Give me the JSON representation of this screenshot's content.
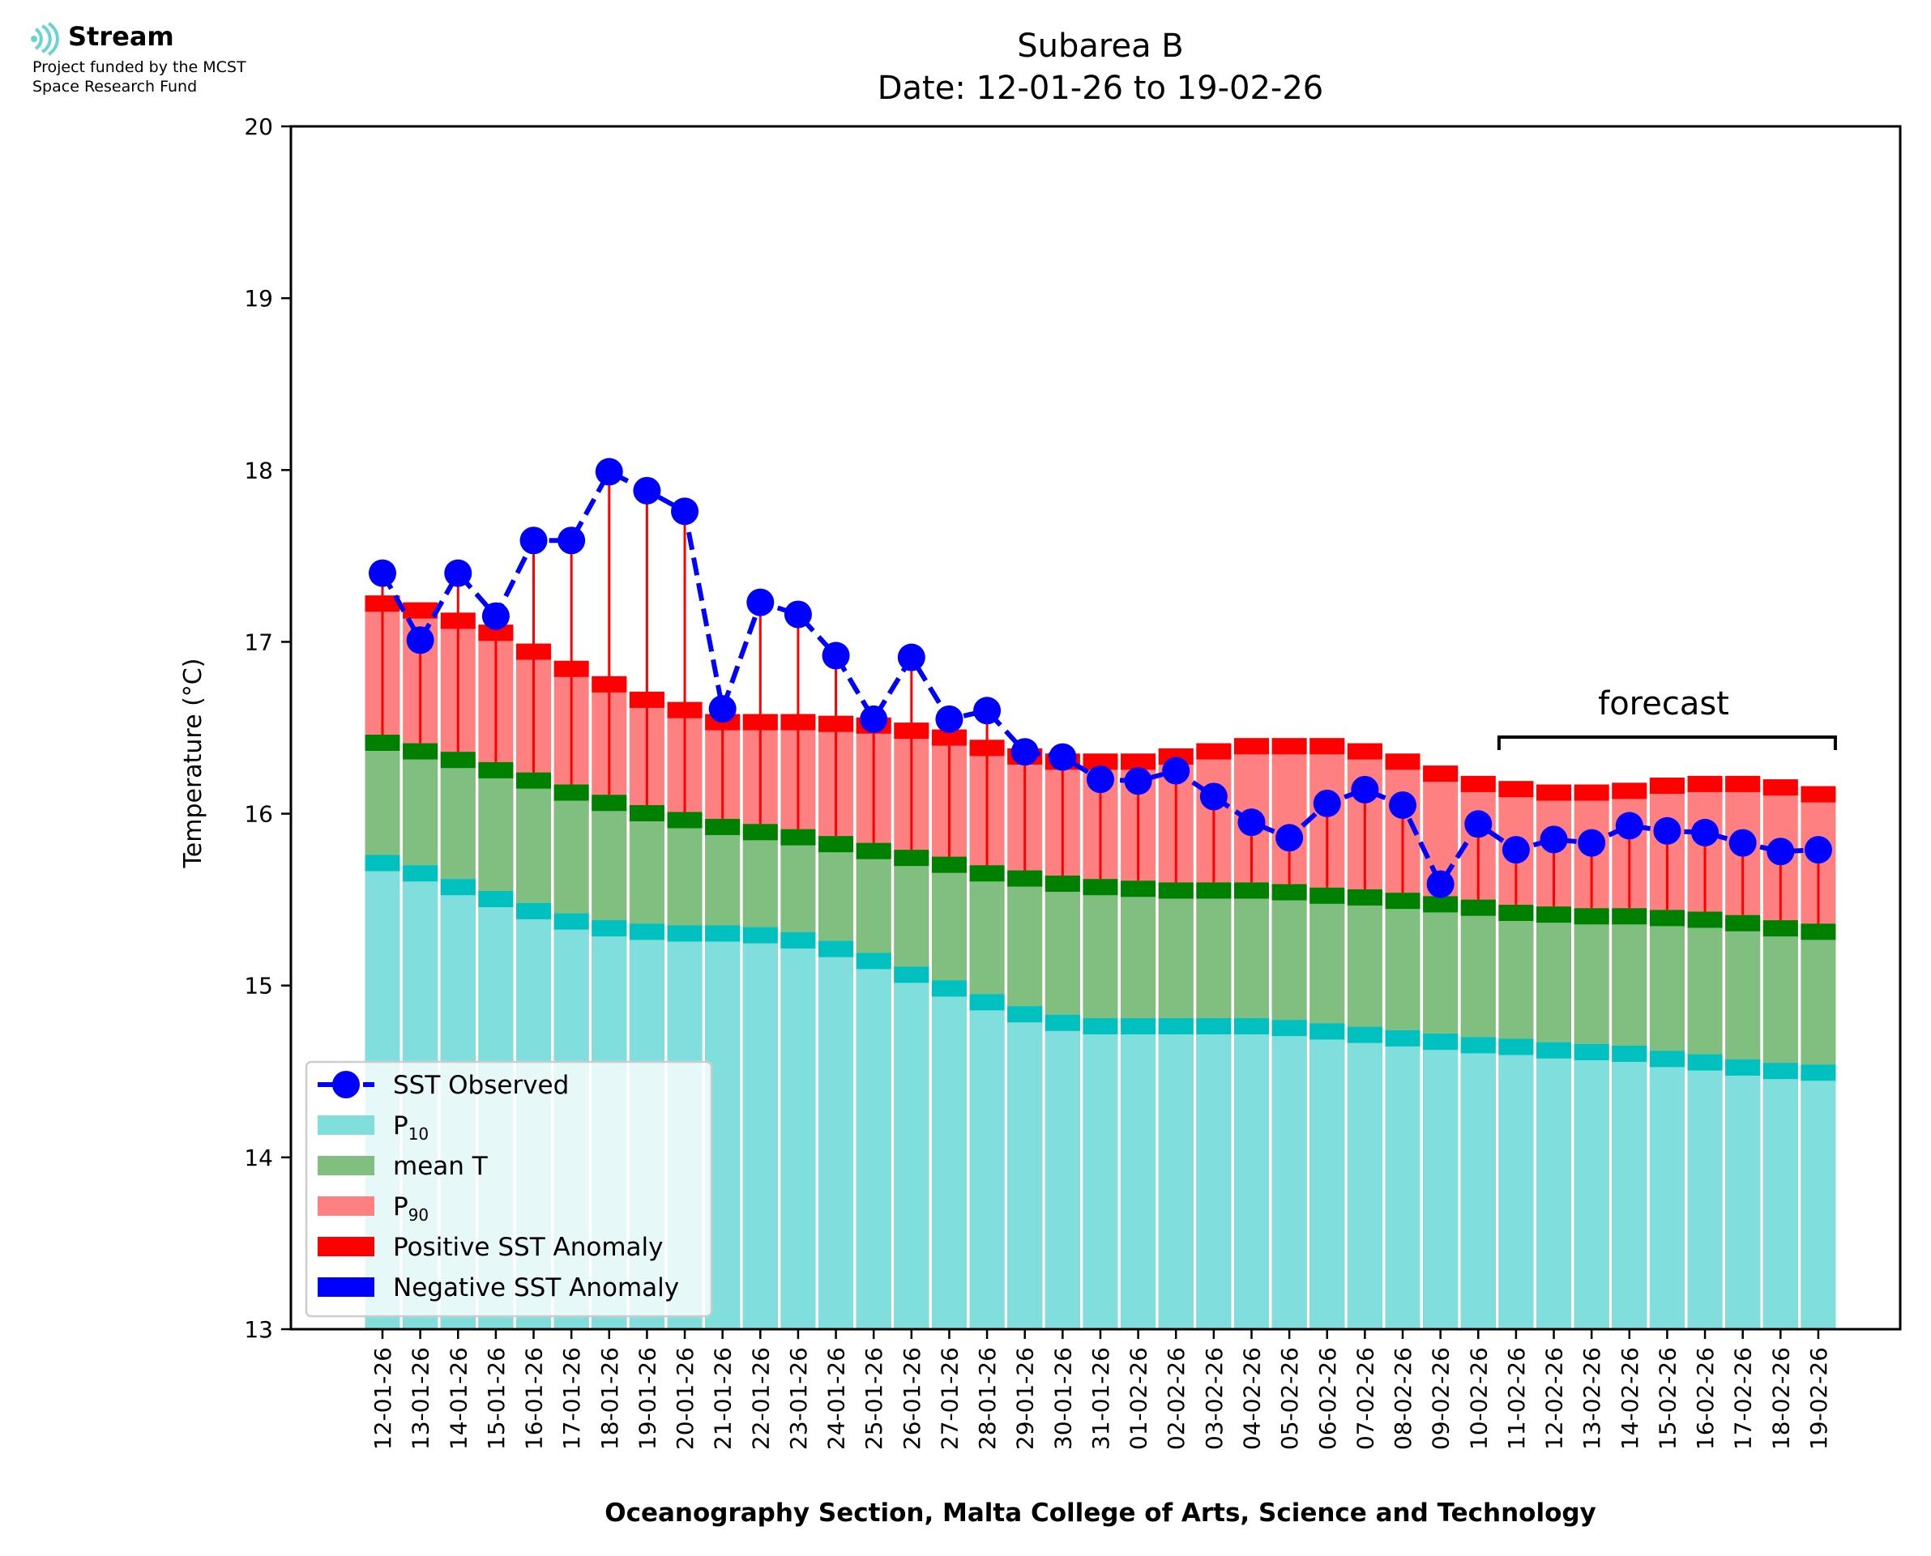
{
  "logo": {
    "brand": "Stream",
    "line1": "Project funded by the MCST",
    "line2": "Space Research Fund"
  },
  "chart_data": {
    "type": "bar",
    "title": "Subarea B",
    "subtitle": "Date: 12-01-26 to 19-02-26",
    "xlabel": "Oceanography Section, Malta College of Arts, Science and Technology",
    "ylabel": "Temperature (°C)",
    "ylim": [
      13,
      20
    ],
    "yticks": [
      13,
      14,
      15,
      16,
      17,
      18,
      19,
      20
    ],
    "annotation": "forecast",
    "forecast_start": "11-02-26",
    "forecast_end": "19-02-26",
    "legend_position": "lower-left",
    "legend": [
      {
        "label": "SST Observed",
        "kind": "line-marker",
        "color": "#0000ff"
      },
      {
        "label": "P",
        "sub": "10",
        "kind": "patch",
        "color": "#80deddff"
      },
      {
        "label": "mean T",
        "kind": "patch",
        "color": "#80bf80"
      },
      {
        "label": "P",
        "sub": "90",
        "kind": "patch",
        "color": "#ff8080"
      },
      {
        "label": "Positive SST Anomaly",
        "kind": "patch",
        "color": "#ff0000"
      },
      {
        "label": "Negative SST Anomaly",
        "kind": "patch",
        "color": "#0000ff"
      }
    ],
    "colors": {
      "p10": "#80dedd",
      "p10_cap": "#00c0c0",
      "mean": "#80bf80",
      "mean_cap": "#008000",
      "p90": "#ff8080",
      "p90_cap": "#ff0000",
      "sst": "#0000ff",
      "anomaly_pos": "#ff0000"
    },
    "categories": [
      "12-01-26",
      "13-01-26",
      "14-01-26",
      "15-01-26",
      "16-01-26",
      "17-01-26",
      "18-01-26",
      "19-01-26",
      "20-01-26",
      "21-01-26",
      "22-01-26",
      "23-01-26",
      "24-01-26",
      "25-01-26",
      "26-01-26",
      "27-01-26",
      "28-01-26",
      "29-01-26",
      "30-01-26",
      "31-01-26",
      "01-02-26",
      "02-02-26",
      "03-02-26",
      "04-02-26",
      "05-02-26",
      "06-02-26",
      "07-02-26",
      "08-02-26",
      "09-02-26",
      "10-02-26",
      "11-02-26",
      "12-02-26",
      "13-02-26",
      "14-02-26",
      "15-02-26",
      "16-02-26",
      "17-02-26",
      "18-02-26",
      "19-02-26"
    ],
    "series": [
      {
        "name": "P10",
        "values": [
          15.76,
          15.7,
          15.62,
          15.55,
          15.48,
          15.42,
          15.38,
          15.36,
          15.35,
          15.35,
          15.34,
          15.31,
          15.26,
          15.19,
          15.11,
          15.03,
          14.95,
          14.88,
          14.83,
          14.81,
          14.81,
          14.81,
          14.81,
          14.81,
          14.8,
          14.78,
          14.76,
          14.74,
          14.72,
          14.7,
          14.69,
          14.67,
          14.66,
          14.65,
          14.62,
          14.6,
          14.57,
          14.55,
          14.54
        ]
      },
      {
        "name": "mean T",
        "values": [
          16.46,
          16.41,
          16.36,
          16.3,
          16.24,
          16.17,
          16.11,
          16.05,
          16.01,
          15.97,
          15.94,
          15.91,
          15.87,
          15.83,
          15.79,
          15.75,
          15.7,
          15.67,
          15.64,
          15.62,
          15.61,
          15.6,
          15.6,
          15.6,
          15.59,
          15.57,
          15.56,
          15.54,
          15.52,
          15.5,
          15.47,
          15.46,
          15.45,
          15.45,
          15.44,
          15.43,
          15.41,
          15.38,
          15.36
        ]
      },
      {
        "name": "P90",
        "values": [
          17.27,
          17.23,
          17.17,
          17.1,
          16.99,
          16.89,
          16.8,
          16.71,
          16.65,
          16.58,
          16.58,
          16.58,
          16.57,
          16.56,
          16.53,
          16.49,
          16.43,
          16.38,
          16.35,
          16.35,
          16.35,
          16.38,
          16.41,
          16.44,
          16.44,
          16.44,
          16.41,
          16.35,
          16.28,
          16.22,
          16.19,
          16.17,
          16.17,
          16.18,
          16.21,
          16.22,
          16.22,
          16.2,
          16.16
        ]
      },
      {
        "name": "SST Observed",
        "values": [
          17.4,
          17.01,
          17.4,
          17.15,
          17.59,
          17.59,
          17.99,
          17.88,
          17.76,
          16.61,
          17.23,
          17.16,
          16.92,
          16.55,
          16.91,
          16.55,
          16.6,
          16.36,
          16.33,
          16.2,
          16.19,
          16.25,
          16.1,
          15.95,
          15.86,
          16.06,
          16.14,
          16.05,
          15.59,
          15.94,
          15.79,
          15.85,
          15.83,
          15.93,
          15.9,
          15.89,
          15.83,
          15.78,
          15.79
        ]
      }
    ]
  }
}
